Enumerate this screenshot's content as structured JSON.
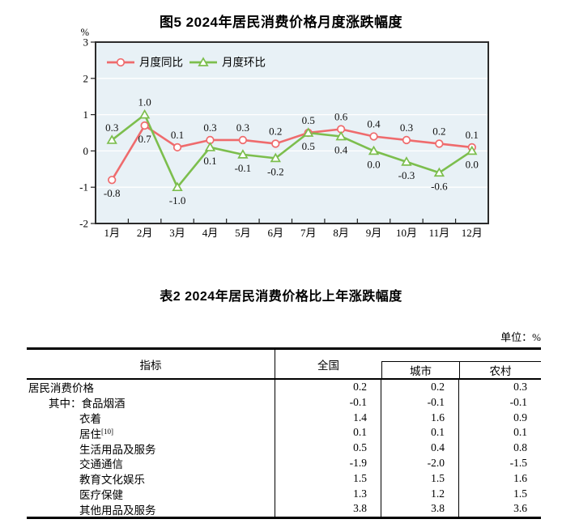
{
  "figure": {
    "title": "图5  2024年居民消费价格月度涨跌幅度"
  },
  "chart_data": {
    "type": "line",
    "title": "图5  2024年居民消费价格月度涨跌幅度",
    "axis_unit": "%",
    "categories": [
      "1月",
      "2月",
      "3月",
      "4月",
      "5月",
      "6月",
      "7月",
      "8月",
      "9月",
      "10月",
      "11月",
      "12月"
    ],
    "series": [
      {
        "name": "月度同比",
        "marker": "circle",
        "color": "#ef6b6d",
        "values": [
          -0.8,
          0.7,
          0.1,
          0.3,
          0.3,
          0.2,
          0.5,
          0.6,
          0.4,
          0.3,
          0.2,
          0.1
        ]
      },
      {
        "name": "月度环比",
        "marker": "triangle",
        "color": "#7cbe4d",
        "values": [
          0.3,
          1.0,
          -1.0,
          0.1,
          -0.1,
          -0.2,
          0.5,
          0.4,
          0.0,
          -0.3,
          -0.6,
          0.0
        ]
      }
    ],
    "ylim": [
      -2,
      3
    ],
    "yticks": [
      3,
      2,
      1,
      0,
      -1,
      -2
    ],
    "grid": true,
    "legend_position": "top-left",
    "plot_bg": "#e8f1f6",
    "border_color": "#2b2b2b",
    "label_decimals": 1
  },
  "table": {
    "title": "表2  2024年居民消费价格比上年涨跌幅度",
    "unit_note": "单位：%",
    "columns": {
      "indicator": "指标",
      "national": "全国",
      "city": "城市",
      "rural": "农村"
    },
    "rows": [
      {
        "label": "居民消费价格",
        "sup": "",
        "indent": 0,
        "values": [
          "0.2",
          "0.2",
          "0.3"
        ]
      },
      {
        "label": "其中：食品烟酒",
        "sup": "",
        "indent": 1,
        "values": [
          "-0.1",
          "-0.1",
          "-0.1"
        ]
      },
      {
        "label": "衣着",
        "sup": "",
        "indent": 2,
        "values": [
          "1.4",
          "1.6",
          "0.9"
        ]
      },
      {
        "label": "居住",
        "sup": "[10]",
        "indent": 2,
        "values": [
          "0.1",
          "0.1",
          "0.1"
        ]
      },
      {
        "label": "生活用品及服务",
        "sup": "",
        "indent": 2,
        "values": [
          "0.5",
          "0.4",
          "0.8"
        ]
      },
      {
        "label": "交通通信",
        "sup": "",
        "indent": 2,
        "values": [
          "-1.9",
          "-2.0",
          "-1.5"
        ]
      },
      {
        "label": "教育文化娱乐",
        "sup": "",
        "indent": 2,
        "values": [
          "1.5",
          "1.5",
          "1.6"
        ]
      },
      {
        "label": "医疗保健",
        "sup": "",
        "indent": 2,
        "values": [
          "1.3",
          "1.2",
          "1.5"
        ]
      },
      {
        "label": "其他用品及服务",
        "sup": "",
        "indent": 2,
        "values": [
          "3.8",
          "3.8",
          "3.6"
        ]
      }
    ]
  }
}
